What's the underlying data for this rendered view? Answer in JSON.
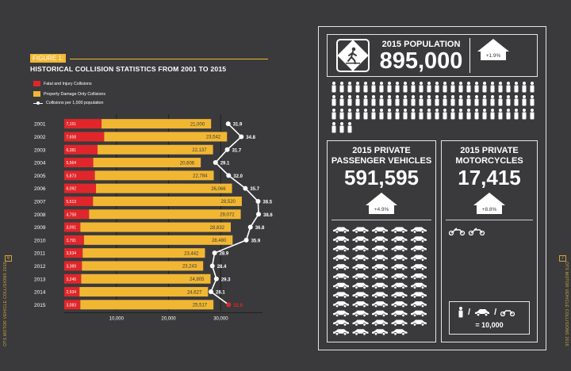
{
  "side_left": "OTS MOTOR VEHICLE COLLISIONS 2015",
  "side_right": "OTS MOTOR VEHICLE COLLISIONS 2015",
  "page_left": "6",
  "page_right": "7",
  "figure": {
    "tag": "FIGURE 1:",
    "title": "HISTORICAL COLLISION STATISTICS FROM 2001 TO 2015",
    "legend": [
      "Fatal and Injury Collisions",
      "Property Damage Only Collisions",
      "Collisions per 1,000 population"
    ]
  },
  "chart_data": {
    "type": "bar",
    "stacked": true,
    "orientation": "horizontal",
    "categories": [
      "2001",
      "2002",
      "2003",
      "2004",
      "2005",
      "2006",
      "2007",
      "2008",
      "2009",
      "2010",
      "2011",
      "2012",
      "2013",
      "2014",
      "2015"
    ],
    "series": [
      {
        "name": "Fatal and Injury Collisions",
        "values": [
          7151,
          7658,
          6381,
          5564,
          5873,
          6092,
          5513,
          4758,
          3091,
          3791,
          3534,
          3389,
          3246,
          2934,
          3083
        ],
        "labels": [
          "7,151",
          "7,658",
          "6,381",
          "5,564",
          "5,873",
          "6,092",
          "5,513",
          "4,758",
          "3,091",
          "3,791",
          "3,534",
          "3,389",
          "3,246",
          "2,934",
          "3,083"
        ],
        "color": "#e0262b"
      },
      {
        "name": "Property Damage Only Collisions",
        "values": [
          21000,
          23542,
          22137,
          20606,
          22784,
          26066,
          28520,
          29072,
          28832,
          28480,
          23442,
          23243,
          24805,
          24627,
          25517
        ],
        "labels": [
          "21,000",
          "23,542",
          "22,137",
          "20,606",
          "22,784",
          "26,066",
          "28,520",
          "29,072",
          "28,832",
          "28,480",
          "23,442",
          "23,243",
          "24,805",
          "24,627",
          "25,517"
        ],
        "color": "#f2b732"
      }
    ],
    "line": {
      "name": "Collisions per 1,000 population",
      "values": [
        31.9,
        34.8,
        31.7,
        29.1,
        32.0,
        35.7,
        38.5,
        38.6,
        36.8,
        35.9,
        28.9,
        28.4,
        29.3,
        28.1,
        32.0
      ],
      "labels": [
        "31.9",
        "34.8",
        "31.7",
        "29.1",
        "32.0",
        "35.7",
        "38.5",
        "38.6",
        "36.8",
        "35.9",
        "28.9",
        "28.4",
        "29.3",
        "28.1",
        "32.0"
      ]
    },
    "x_ticks": [
      "10,000",
      "20,000",
      "30,000"
    ],
    "x_tick_values": [
      10000,
      20000,
      30000
    ],
    "xlim": [
      0,
      38000
    ],
    "line_range": [
      26,
      40
    ]
  },
  "info": {
    "population": {
      "title": "2015 POPULATION",
      "value": "895,000",
      "change": "+1.9%",
      "icon": "pedestrian-crossing-icon"
    },
    "vehicles": {
      "title1": "2015 PRIVATE",
      "title2": "PASSENGER VEHICLES",
      "value": "591,595",
      "change": "+4.9%",
      "icon": "car-icon"
    },
    "motorcycles": {
      "title1": "2015 PRIVATE",
      "title2": "MOTORCYCLES",
      "value": "17,415",
      "change": "+8.8%",
      "icon": "motorcycle-icon"
    },
    "key": {
      "slash": "/",
      "value": "= 10,000"
    }
  },
  "colors": {
    "background": "#3a3a3c",
    "fatal": "#e0262b",
    "property": "#f2b732",
    "accent": "#d1a53a"
  }
}
